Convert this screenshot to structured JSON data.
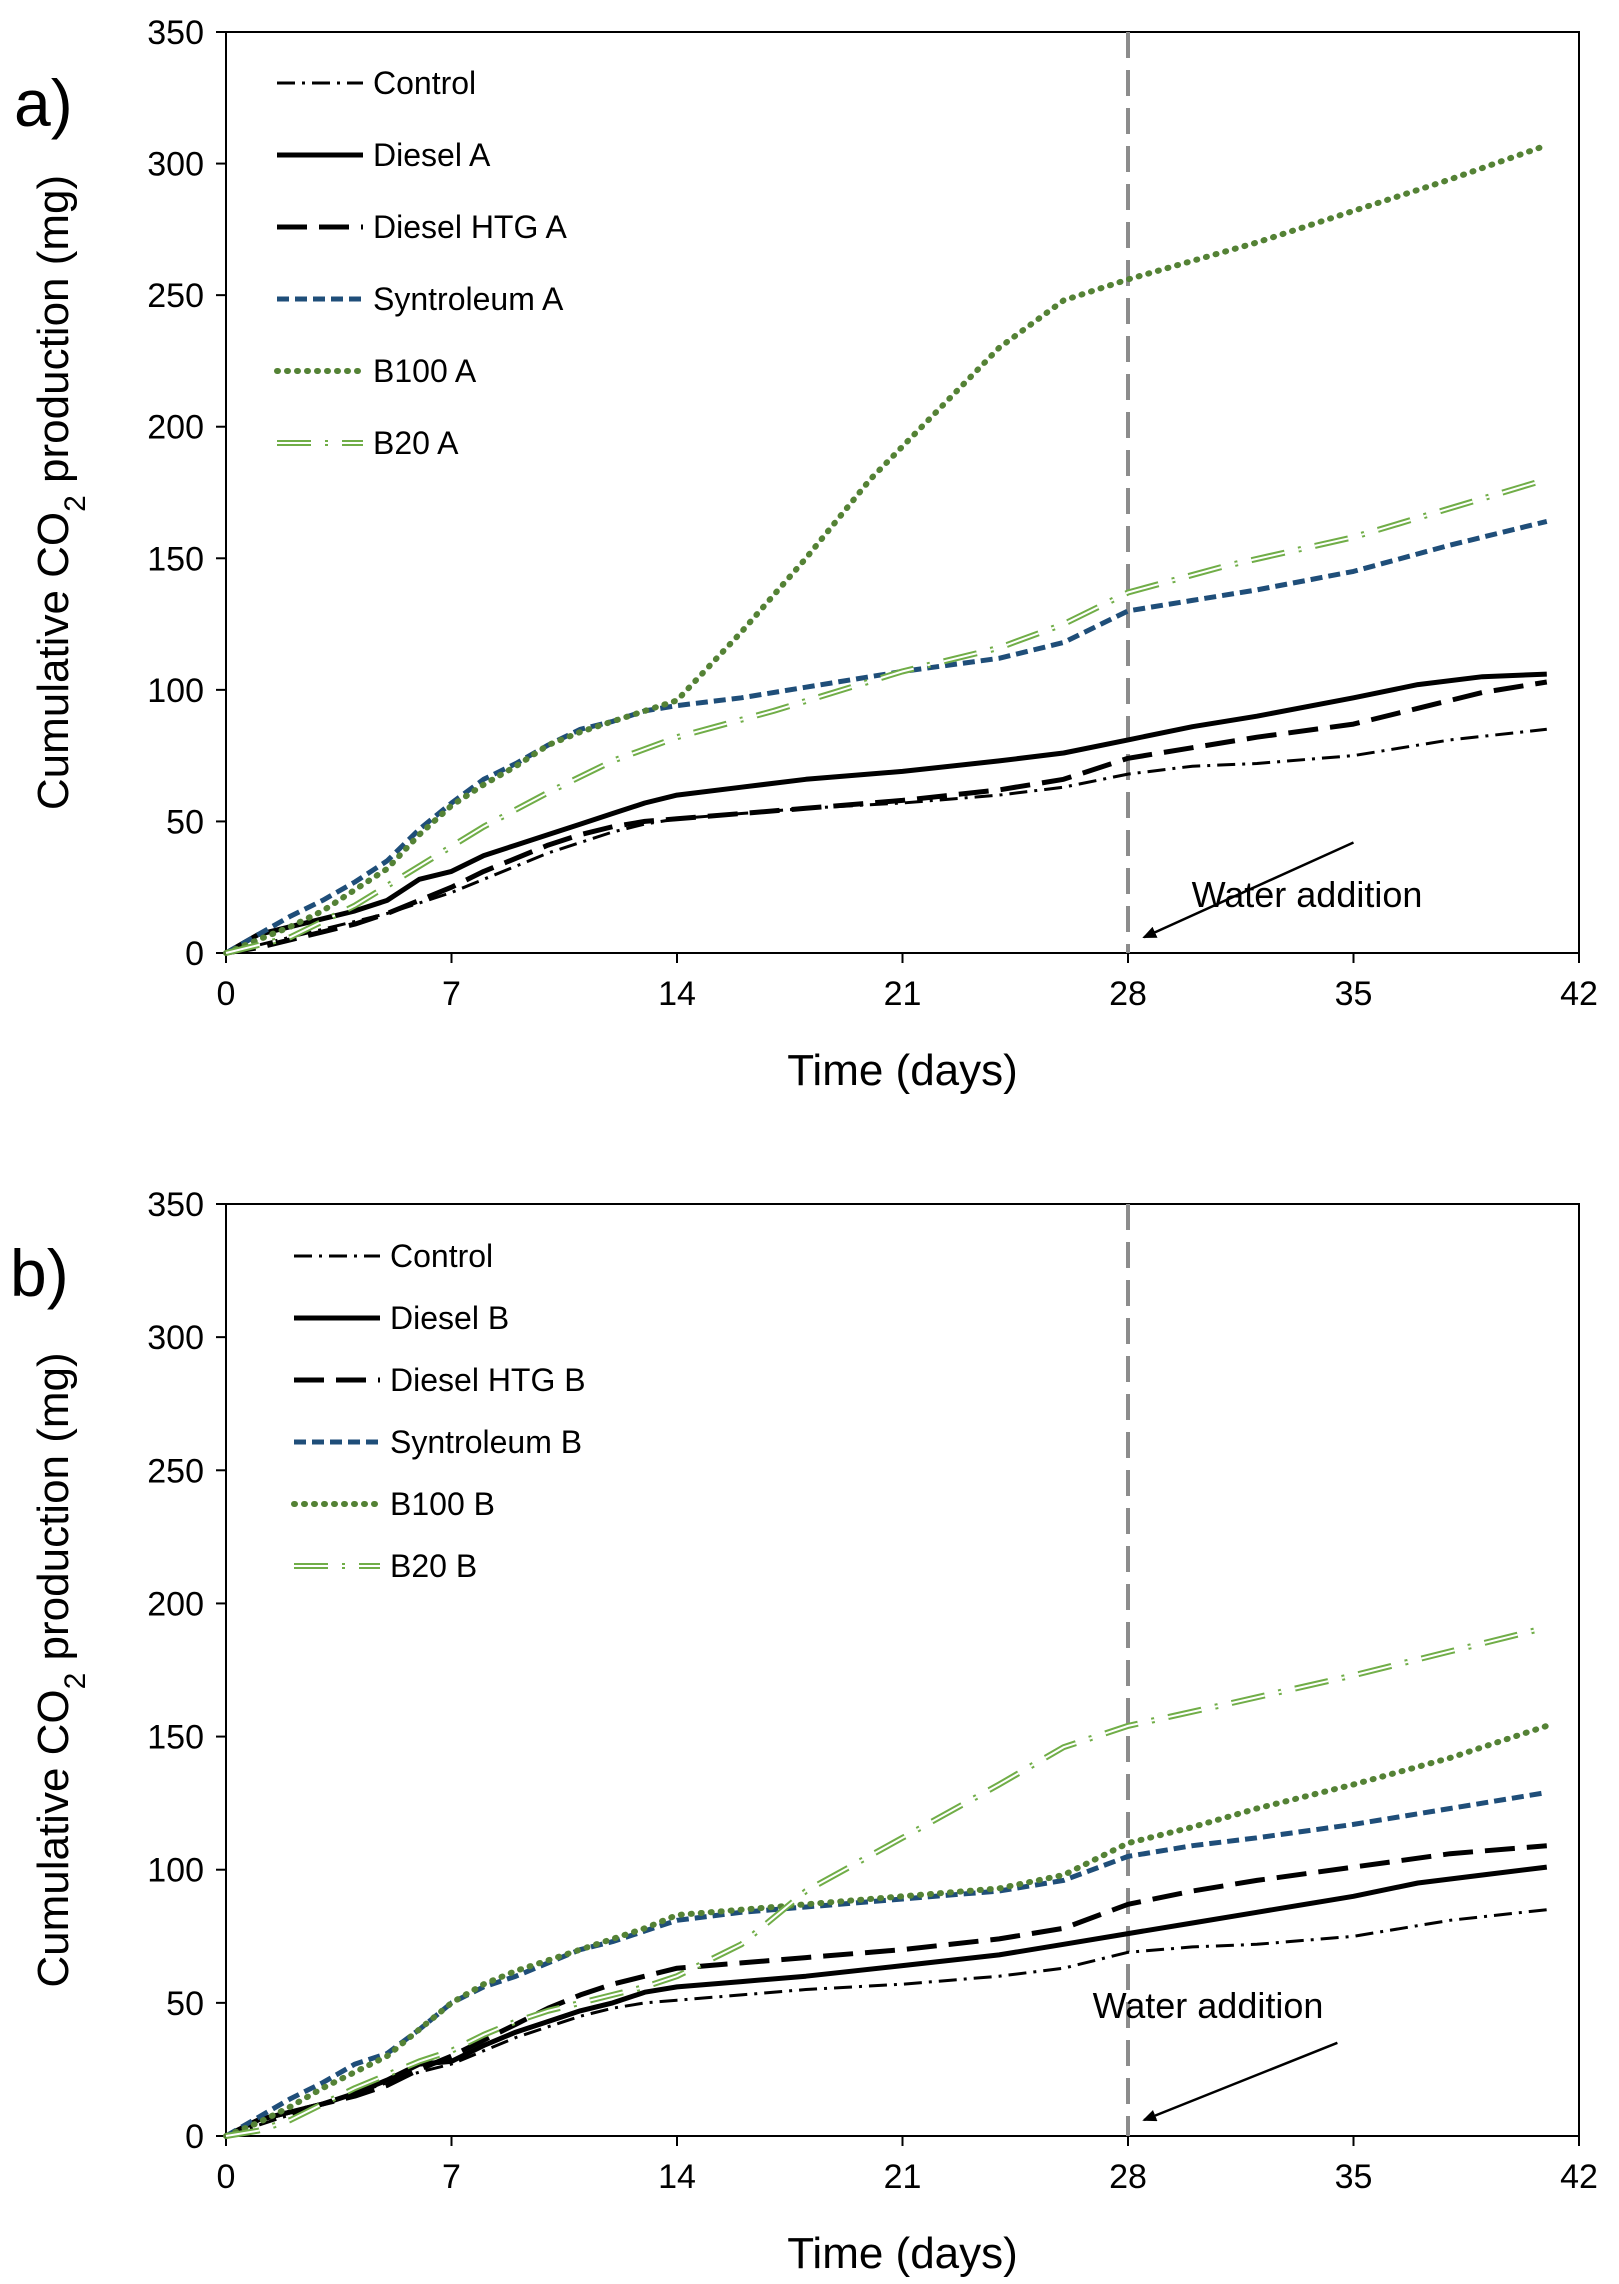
{
  "chart_data": [
    {
      "type": "line",
      "panel_label": "a)",
      "xlabel": "Time (days)",
      "ylabel_prefix": "Cumulative CO",
      "ylabel_sub": "2",
      "ylabel_suffix": " production (mg)",
      "xlim": [
        0,
        42
      ],
      "ylim": [
        0,
        350
      ],
      "xticks": [
        0,
        7,
        14,
        21,
        28,
        35,
        42
      ],
      "yticks": [
        0,
        50,
        100,
        150,
        200,
        250,
        300,
        350
      ],
      "vline_x": 28,
      "annotation": {
        "text": "Water addition",
        "arrow_from": [
          35,
          42
        ],
        "arrow_to": [
          28.5,
          6
        ]
      },
      "legend_position": "top-left",
      "series": [
        {
          "name": "Control",
          "style": "dashdot",
          "color": "#000000",
          "x": [
            0,
            1,
            2,
            3,
            4,
            5,
            6,
            7,
            8,
            9,
            10,
            11,
            12,
            13,
            14,
            16,
            18,
            21,
            24,
            26,
            28,
            30,
            32,
            35,
            38,
            41
          ],
          "y": [
            0,
            3,
            6,
            9,
            12,
            15,
            19,
            23,
            28,
            33,
            38,
            42,
            46,
            49,
            51,
            53,
            55,
            57,
            60,
            63,
            68,
            71,
            72,
            75,
            81,
            85
          ]
        },
        {
          "name": "Diesel A",
          "style": "solid",
          "color": "#000000",
          "x": [
            0,
            1,
            2,
            3,
            4,
            5,
            6,
            7,
            8,
            9,
            10,
            11,
            12,
            13,
            14,
            16,
            18,
            21,
            24,
            26,
            28,
            30,
            32,
            35,
            37,
            39,
            41
          ],
          "y": [
            0,
            7,
            10,
            13,
            16,
            20,
            28,
            31,
            37,
            41,
            45,
            49,
            53,
            57,
            60,
            63,
            66,
            69,
            73,
            76,
            81,
            86,
            90,
            97,
            102,
            105,
            106
          ]
        },
        {
          "name": "Diesel HTG A",
          "style": "longdash",
          "color": "#000000",
          "x": [
            0,
            1,
            2,
            3,
            4,
            5,
            6,
            7,
            8,
            9,
            10,
            11,
            12,
            13,
            14,
            16,
            18,
            21,
            24,
            26,
            28,
            30,
            32,
            35,
            37,
            39,
            41
          ],
          "y": [
            0,
            2,
            5,
            8,
            11,
            15,
            20,
            25,
            31,
            36,
            41,
            45,
            48,
            50,
            51,
            53,
            55,
            58,
            62,
            66,
            74,
            78,
            82,
            87,
            93,
            99,
            103
          ]
        },
        {
          "name": "Syntroleum A",
          "style": "shortdash",
          "color": "#1f4e79",
          "x": [
            0,
            1,
            2,
            3,
            4,
            5,
            6,
            7,
            8,
            9,
            10,
            11,
            12,
            13,
            14,
            16,
            18,
            21,
            24,
            26,
            28,
            30,
            32,
            35,
            38,
            41
          ],
          "y": [
            0,
            7,
            14,
            20,
            27,
            35,
            47,
            57,
            66,
            72,
            79,
            85,
            88,
            92,
            94,
            97,
            101,
            107,
            112,
            118,
            130,
            134,
            138,
            145,
            155,
            164
          ]
        },
        {
          "name": "B100 A",
          "style": "dotted",
          "color": "#548235",
          "x": [
            0,
            1,
            2,
            3,
            4,
            5,
            6,
            7,
            8,
            9,
            10,
            11,
            12,
            13,
            14,
            16,
            18,
            20,
            22,
            24,
            26,
            28,
            30,
            32,
            35,
            38,
            41
          ],
          "y": [
            0,
            5,
            10,
            16,
            24,
            32,
            45,
            56,
            64,
            71,
            79,
            84,
            88,
            92,
            96,
            122,
            150,
            180,
            205,
            230,
            248,
            256,
            263,
            270,
            282,
            294,
            307
          ]
        },
        {
          "name": "B20 A",
          "style": "b20",
          "color": "#70ad47",
          "x": [
            0,
            2,
            4,
            6,
            8,
            10,
            12,
            14,
            17,
            21,
            24,
            26,
            28,
            31,
            35,
            38,
            41
          ],
          "y": [
            0,
            6,
            18,
            33,
            48,
            61,
            73,
            82,
            92,
            107,
            116,
            125,
            137,
            147,
            158,
            169,
            180
          ]
        }
      ]
    },
    {
      "type": "line",
      "panel_label": "b)",
      "xlabel": "Time (days)",
      "ylabel_prefix": "Cumulative CO",
      "ylabel_sub": "2",
      "ylabel_suffix": " production (mg)",
      "xlim": [
        0,
        42
      ],
      "ylim": [
        0,
        350
      ],
      "xticks": [
        0,
        7,
        14,
        21,
        28,
        35,
        42
      ],
      "yticks": [
        0,
        50,
        100,
        150,
        200,
        250,
        300,
        350
      ],
      "vline_x": 28,
      "annotation": {
        "text": "Water addition",
        "arrow_from": [
          34.5,
          35
        ],
        "arrow_to": [
          28.5,
          6
        ]
      },
      "legend_position": "top-left",
      "series": [
        {
          "name": "Control",
          "style": "dashdot",
          "color": "#000000",
          "x": [
            0,
            1,
            2,
            3,
            4,
            5,
            6,
            7,
            8,
            9,
            10,
            11,
            12,
            13,
            14,
            16,
            18,
            21,
            24,
            26,
            28,
            30,
            32,
            35,
            38,
            41
          ],
          "y": [
            0,
            4,
            8,
            12,
            16,
            20,
            24,
            27,
            32,
            37,
            41,
            45,
            48,
            50,
            51,
            53,
            55,
            57,
            60,
            63,
            69,
            71,
            72,
            75,
            81,
            85
          ]
        },
        {
          "name": "Diesel B",
          "style": "solid",
          "color": "#000000",
          "x": [
            0,
            1,
            2,
            3,
            4,
            5,
            6,
            7,
            8,
            9,
            10,
            11,
            12,
            13,
            14,
            16,
            18,
            21,
            24,
            26,
            28,
            30,
            32,
            35,
            37,
            39,
            41
          ],
          "y": [
            0,
            6,
            9,
            12,
            16,
            21,
            27,
            28,
            34,
            39,
            43,
            47,
            50,
            54,
            56,
            58,
            60,
            64,
            68,
            72,
            76,
            80,
            84,
            90,
            95,
            98,
            101
          ]
        },
        {
          "name": "Diesel HTG B",
          "style": "longdash",
          "color": "#000000",
          "x": [
            0,
            1,
            2,
            3,
            4,
            5,
            6,
            7,
            8,
            9,
            10,
            11,
            12,
            13,
            14,
            16,
            18,
            21,
            24,
            26,
            28,
            30,
            32,
            35,
            38,
            41
          ],
          "y": [
            0,
            6,
            9,
            12,
            15,
            19,
            25,
            30,
            36,
            42,
            48,
            53,
            57,
            60,
            63,
            65,
            67,
            70,
            74,
            78,
            87,
            92,
            96,
            101,
            106,
            109
          ]
        },
        {
          "name": "Syntroleum B",
          "style": "shortdash",
          "color": "#1f4e79",
          "x": [
            0,
            1,
            2,
            3,
            4,
            5,
            6,
            7,
            8,
            9,
            10,
            11,
            12,
            13,
            14,
            16,
            18,
            21,
            24,
            26,
            28,
            30,
            32,
            35,
            38,
            41
          ],
          "y": [
            0,
            7,
            14,
            20,
            27,
            31,
            40,
            50,
            56,
            60,
            65,
            70,
            73,
            77,
            81,
            84,
            86,
            89,
            92,
            96,
            105,
            109,
            112,
            117,
            123,
            129
          ]
        },
        {
          "name": "B100 B",
          "style": "dotted",
          "color": "#548235",
          "x": [
            0,
            1,
            2,
            3,
            4,
            5,
            6,
            7,
            8,
            9,
            10,
            11,
            12,
            13,
            14,
            16,
            18,
            21,
            24,
            26,
            28,
            30,
            32,
            35,
            38,
            41
          ],
          "y": [
            0,
            5,
            11,
            18,
            24,
            30,
            40,
            50,
            57,
            62,
            66,
            70,
            74,
            78,
            83,
            85,
            87,
            90,
            93,
            98,
            110,
            116,
            123,
            132,
            142,
            154
          ]
        },
        {
          "name": "B20 B",
          "style": "b20",
          "color": "#70ad47",
          "x": [
            0,
            1,
            2,
            3,
            4,
            5,
            6,
            7,
            8,
            9,
            10,
            11,
            12,
            13,
            14,
            16,
            18,
            21,
            24,
            26,
            28,
            31,
            35,
            38,
            41
          ],
          "y": [
            0,
            2,
            6,
            12,
            18,
            23,
            28,
            32,
            38,
            43,
            47,
            50,
            53,
            56,
            60,
            72,
            92,
            112,
            132,
            146,
            154,
            162,
            173,
            182,
            191
          ]
        }
      ]
    }
  ]
}
